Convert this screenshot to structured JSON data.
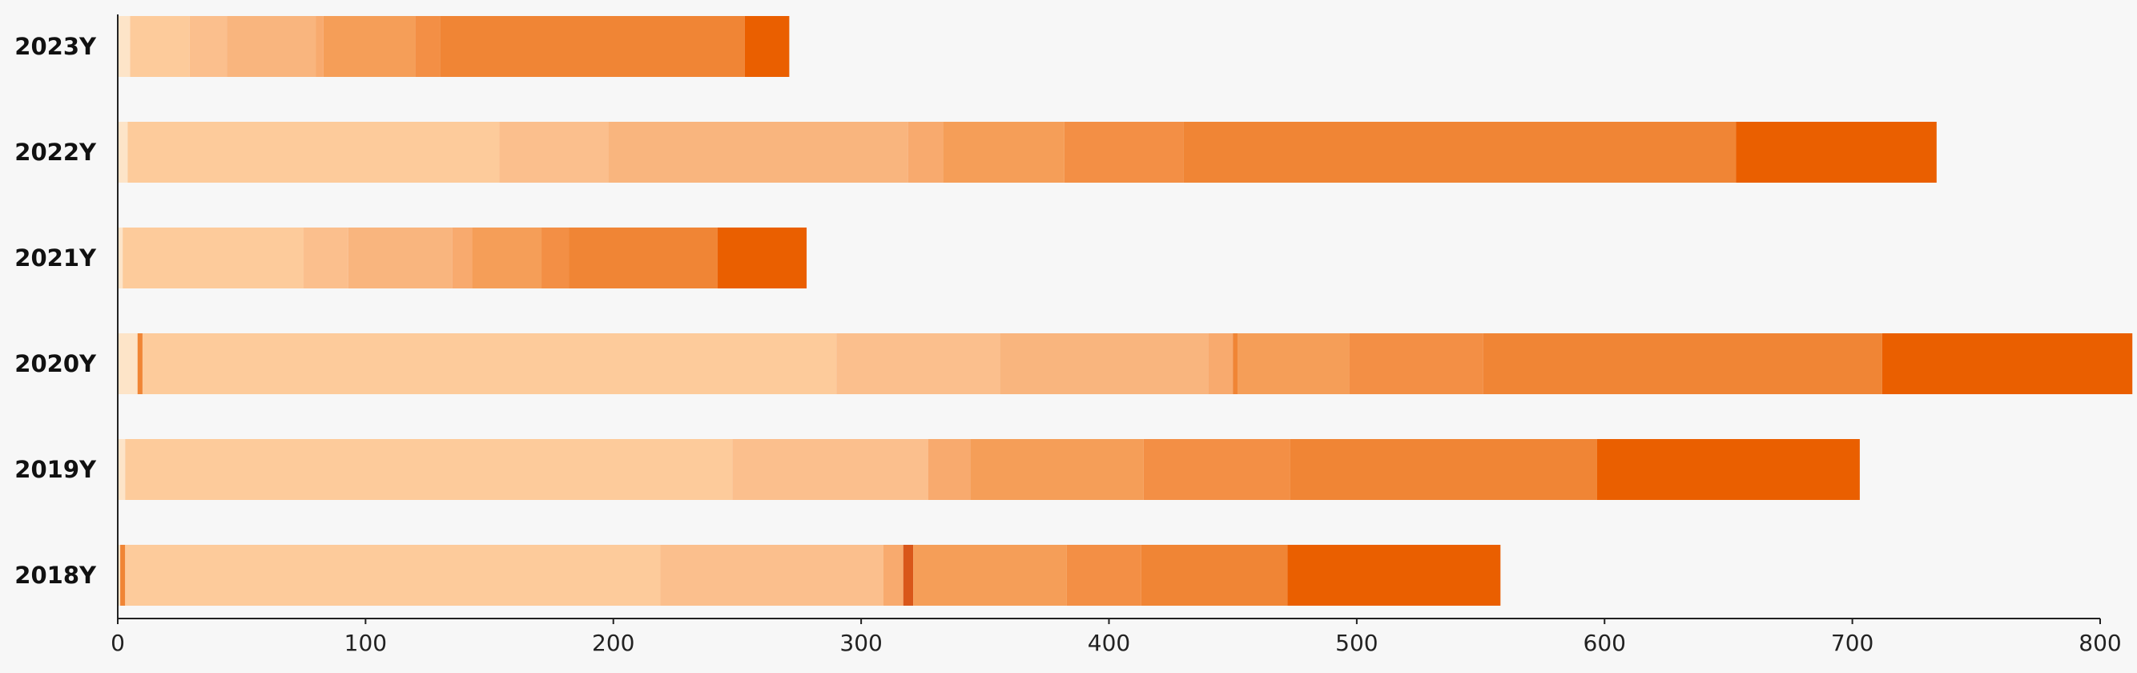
{
  "chart_data": {
    "type": "bar",
    "orientation": "horizontal",
    "stacked": true,
    "title": "",
    "xlabel": "",
    "ylabel": "",
    "xlim": [
      0,
      800
    ],
    "x_ticks": [
      0,
      100,
      200,
      300,
      400,
      500,
      600,
      700,
      800
    ],
    "categories": [
      "2023Y",
      "2022Y",
      "2021Y",
      "2020Y",
      "2019Y",
      "2018Y"
    ],
    "grid": false,
    "legend": "none",
    "rows": [
      {
        "category": "2023Y",
        "segments": [
          {
            "value": 5,
            "color": "#fde4c8"
          },
          {
            "value": 24,
            "color": "#fdcb9b"
          },
          {
            "value": 15,
            "color": "#fbbf8d"
          },
          {
            "value": 36,
            "color": "#f9b57e"
          },
          {
            "value": 3,
            "color": "#f8aa6e"
          },
          {
            "value": 37,
            "color": "#f59e58"
          },
          {
            "value": 10,
            "color": "#f38f45"
          },
          {
            "value": 123,
            "color": "#f08535"
          },
          {
            "value": 18,
            "color": "#ea5f00"
          }
        ]
      },
      {
        "category": "2022Y",
        "segments": [
          {
            "value": 4,
            "color": "#fde4c8"
          },
          {
            "value": 150,
            "color": "#fdcb9b"
          },
          {
            "value": 44,
            "color": "#fbbf8d"
          },
          {
            "value": 121,
            "color": "#f9b57e"
          },
          {
            "value": 14,
            "color": "#f8aa6e"
          },
          {
            "value": 49,
            "color": "#f59e58"
          },
          {
            "value": 48,
            "color": "#f38f45"
          },
          {
            "value": 223,
            "color": "#f08535"
          },
          {
            "value": 81,
            "color": "#ea5f00"
          }
        ]
      },
      {
        "category": "2021Y",
        "segments": [
          {
            "value": 2,
            "color": "#fde4c8"
          },
          {
            "value": 73,
            "color": "#fdcb9b"
          },
          {
            "value": 18,
            "color": "#fbbf8d"
          },
          {
            "value": 42,
            "color": "#f9b57e"
          },
          {
            "value": 8,
            "color": "#f8aa6e"
          },
          {
            "value": 28,
            "color": "#f59e58"
          },
          {
            "value": 11,
            "color": "#f38f45"
          },
          {
            "value": 60,
            "color": "#f08535"
          },
          {
            "value": 36,
            "color": "#ea5f00"
          }
        ]
      },
      {
        "category": "2020Y",
        "segments": [
          {
            "value": 8,
            "color": "#fde4c8"
          },
          {
            "value": 2,
            "color": "#f08535"
          },
          {
            "value": 280,
            "color": "#fdcb9b"
          },
          {
            "value": 66,
            "color": "#fbbf8d"
          },
          {
            "value": 84,
            "color": "#f9b57e"
          },
          {
            "value": 10,
            "color": "#f8aa6e"
          },
          {
            "value": 2,
            "color": "#f08535"
          },
          {
            "value": 45,
            "color": "#f59e58"
          },
          {
            "value": 54,
            "color": "#f38f45"
          },
          {
            "value": 161,
            "color": "#f08535"
          },
          {
            "value": 101,
            "color": "#ea5f00"
          }
        ]
      },
      {
        "category": "2019Y",
        "segments": [
          {
            "value": 3,
            "color": "#fde4c8"
          },
          {
            "value": 245,
            "color": "#fdcb9b"
          },
          {
            "value": 79,
            "color": "#fbbf8d"
          },
          {
            "value": 17,
            "color": "#f8aa6e"
          },
          {
            "value": 70,
            "color": "#f59e58"
          },
          {
            "value": 59,
            "color": "#f38f45"
          },
          {
            "value": 124,
            "color": "#f08535"
          },
          {
            "value": 106,
            "color": "#ea5f00"
          }
        ]
      },
      {
        "category": "2018Y",
        "segments": [
          {
            "value": 1,
            "color": "#fde4c8"
          },
          {
            "value": 2,
            "color": "#f08535"
          },
          {
            "value": 216,
            "color": "#fdcb9b"
          },
          {
            "value": 90,
            "color": "#fbbf8d"
          },
          {
            "value": 8,
            "color": "#f8aa6e"
          },
          {
            "value": 4,
            "color": "#d9571a"
          },
          {
            "value": 62,
            "color": "#f59e58"
          },
          {
            "value": 30,
            "color": "#f38f45"
          },
          {
            "value": 59,
            "color": "#f08535"
          },
          {
            "value": 86,
            "color": "#ea5f00"
          }
        ]
      }
    ]
  }
}
